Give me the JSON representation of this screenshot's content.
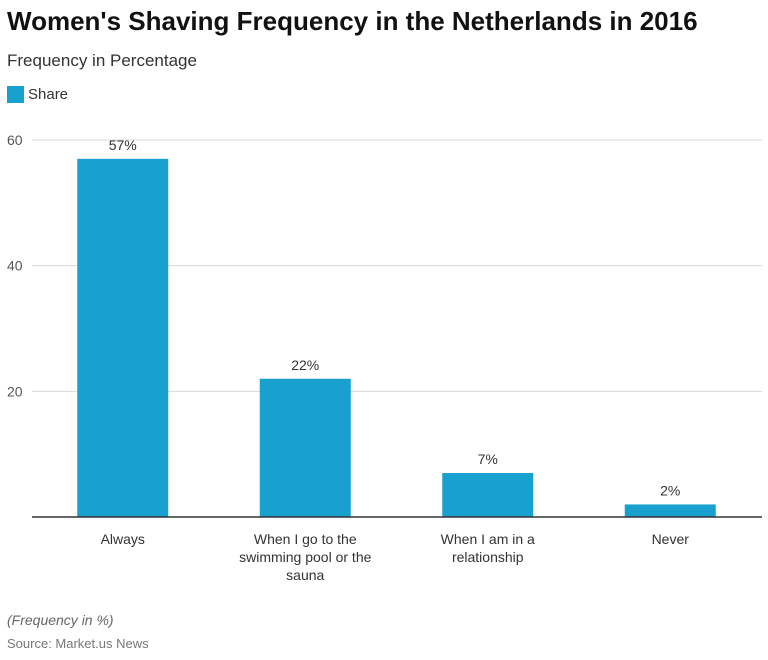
{
  "chart_data": {
    "type": "bar",
    "title": "Women's Shaving Frequency in the Netherlands in 2016",
    "subtitle": "Frequency in Percentage",
    "categories": [
      [
        "Always"
      ],
      [
        "When I go to the",
        "swimming pool or the",
        "sauna"
      ],
      [
        "When I am in a",
        "relationship"
      ],
      [
        "Never"
      ]
    ],
    "series": [
      {
        "name": "Share",
        "values": [
          57,
          22,
          7,
          2
        ],
        "labels": [
          "57%",
          "22%",
          "7%",
          "2%"
        ],
        "color": "#18a0cf"
      }
    ],
    "yticks": [
      "20",
      "40",
      "60"
    ],
    "ylim": [
      0,
      60
    ],
    "grid": true,
    "legend": "top-left",
    "note": "(Frequency in %)",
    "source": "Source: Market.us News"
  }
}
